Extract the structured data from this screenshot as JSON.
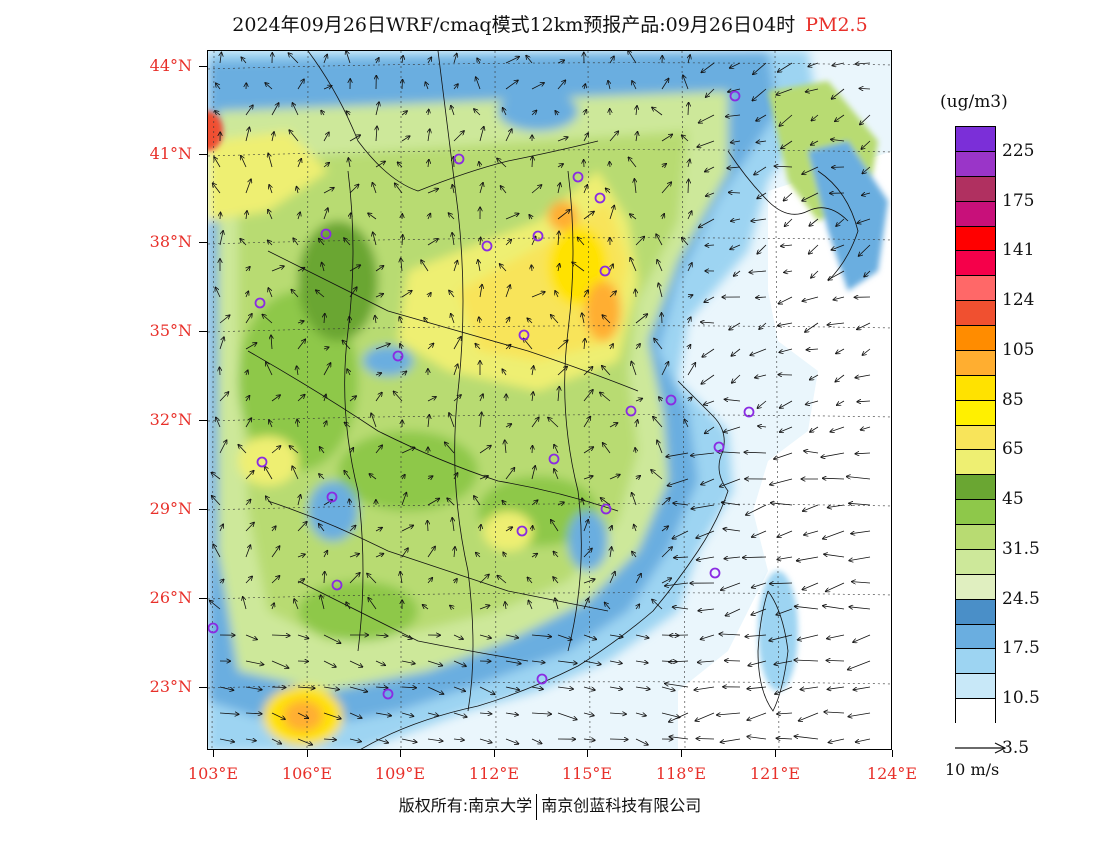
{
  "title": {
    "main": "2024年09月26日WRF/cmaq模式12km预报产品:09月26日04时",
    "pollutant": "PM2.5"
  },
  "axes": {
    "lat_labels": [
      "44°N",
      "41°N",
      "38°N",
      "35°N",
      "32°N",
      "29°N",
      "26°N",
      "23°N"
    ],
    "lon_labels": [
      "103°E",
      "106°E",
      "109°E",
      "112°E",
      "115°E",
      "118°E",
      "121°E",
      "124°E"
    ]
  },
  "colorbar": {
    "unit": "(ug/m3)",
    "labels": [
      "225",
      "175",
      "141",
      "124",
      "105",
      "85",
      "65",
      "45",
      "31.5",
      "24.5",
      "17.5",
      "10.5",
      "3.5"
    ],
    "colors": [
      "#7b2fd8",
      "#9a35c8",
      "#b03060",
      "#c8107a",
      "#ff0000",
      "#f5004a",
      "#ff6868",
      "#f05030",
      "#ff8c00",
      "#ffae30",
      "#ffe200",
      "#fff000",
      "#f8e45a",
      "#eeef72",
      "#6aa632",
      "#8ec84a",
      "#b8db72",
      "#cde89a",
      "#e0efc0",
      "#4a8fc8",
      "#6aaee0",
      "#9dd4f2",
      "#c8e8f8",
      "#ffffff"
    ]
  },
  "wind_reference": "10 m/s",
  "copyright": {
    "left": "版权所有:南京大学",
    "right": "南京创蓝科技有限公司"
  }
}
